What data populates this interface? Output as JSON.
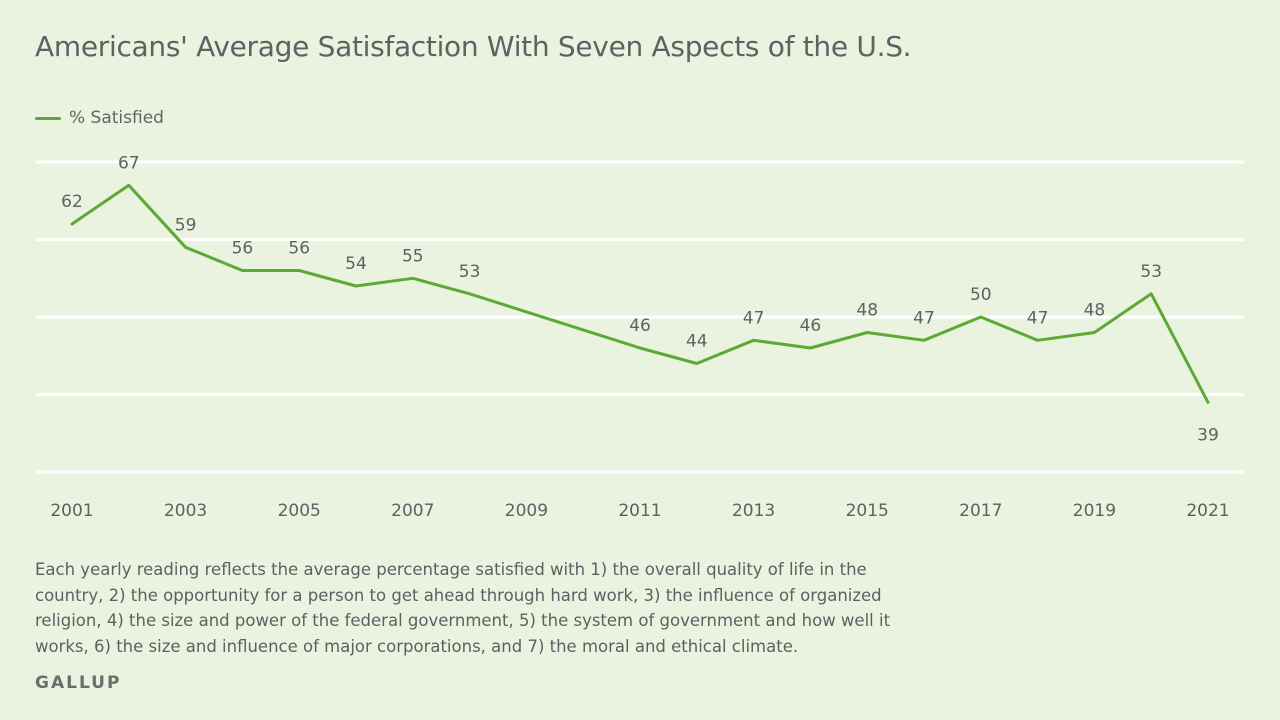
{
  "chart_data": {
    "type": "line",
    "title": "Americans' Average Satisfaction With Seven Aspects of the U.S.",
    "xlabel": "",
    "ylabel": "",
    "xlim": [
      2001,
      2021
    ],
    "ylim": [
      30,
      70
    ],
    "grid": true,
    "legend_position": "top-left",
    "x_ticks": [
      "2001",
      "2003",
      "2005",
      "2007",
      "2009",
      "2011",
      "2013",
      "2015",
      "2017",
      "2019",
      "2021"
    ],
    "series": [
      {
        "name": "% Satisfied",
        "color": "#5da935",
        "points": [
          {
            "x": 2001,
            "y": 62,
            "label": "62",
            "label_position": "above"
          },
          {
            "x": 2002,
            "y": 67,
            "label": "67",
            "label_position": "above"
          },
          {
            "x": 2003,
            "y": 59,
            "label": "59",
            "label_position": "above"
          },
          {
            "x": 2004,
            "y": 56,
            "label": "56",
            "label_position": "above"
          },
          {
            "x": 2005,
            "y": 56,
            "label": "56",
            "label_position": "above"
          },
          {
            "x": 2006,
            "y": 54,
            "label": "54",
            "label_position": "above"
          },
          {
            "x": 2007,
            "y": 55,
            "label": "55",
            "label_position": "above"
          },
          {
            "x": 2008,
            "y": 53,
            "label": "53",
            "label_position": "above"
          },
          {
            "x": 2011,
            "y": 46,
            "label": "46",
            "label_position": "above"
          },
          {
            "x": 2012,
            "y": 44,
            "label": "44",
            "label_position": "above"
          },
          {
            "x": 2013,
            "y": 47,
            "label": "47",
            "label_position": "above"
          },
          {
            "x": 2014,
            "y": 46,
            "label": "46",
            "label_position": "above"
          },
          {
            "x": 2015,
            "y": 48,
            "label": "48",
            "label_position": "above"
          },
          {
            "x": 2016,
            "y": 47,
            "label": "47",
            "label_position": "above"
          },
          {
            "x": 2017,
            "y": 50,
            "label": "50",
            "label_position": "above"
          },
          {
            "x": 2018,
            "y": 47,
            "label": "47",
            "label_position": "above"
          },
          {
            "x": 2019,
            "y": 48,
            "label": "48",
            "label_position": "above"
          },
          {
            "x": 2020,
            "y": 53,
            "label": "53",
            "label_position": "above"
          },
          {
            "x": 2021,
            "y": 39,
            "label": "39",
            "label_position": "below"
          }
        ]
      }
    ]
  },
  "legend": {
    "label": "% Satisfied"
  },
  "footnote": "Each yearly reading reflects the average percentage satisfied with 1) the overall quality of life in the country, 2) the opportunity for a person to get ahead through hard work, 3) the influence of organized religion, 4) the size and power of the federal government, 5) the system of government and how well it works, 6) the size and influence of major corporations, and 7) the moral and ethical climate.",
  "brand": "GALLUP"
}
